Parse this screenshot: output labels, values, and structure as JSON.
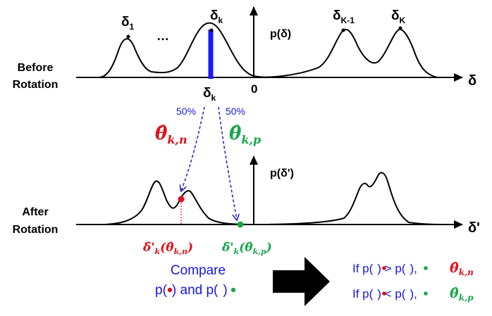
{
  "colors": {
    "curve": "#000000",
    "highlight_bar": "#1a1aff",
    "arrow_blue": "#1a1acc",
    "text_blue": "#1515e6",
    "red": "#e0111a",
    "green": "#16a84a"
  },
  "top": {
    "label_line1": "Before",
    "label_line2": "Rotation",
    "peak_delta1": "δ",
    "peak_delta1_sub": "1",
    "ellipsis": "…",
    "peak_deltak": "δ",
    "peak_deltak_sub": "k",
    "peak_deltaK1": "δ",
    "peak_deltaK1_sub": "K-1",
    "peak_deltaK": "δ",
    "peak_deltaK_sub": "K",
    "yaxis_label": "p(δ)",
    "xaxis_label": "δ",
    "zero_label": "0",
    "below_label": "δ",
    "below_label_sub": "k"
  },
  "arrows": {
    "left_pct": "50%",
    "right_pct": "50%",
    "theta_n_hat": "θ̂",
    "theta_n_sub": "k,n",
    "theta_p_hat": "θ̂",
    "theta_p_sub": "k,p"
  },
  "bottom": {
    "label_line1": "After",
    "label_line2": "Rotation",
    "yaxis_label": "p(δ')",
    "xaxis_label": "δ'",
    "red_label_main": "δ̂'",
    "red_label_k": "k",
    "red_label_open": "(",
    "red_label_theta": "θ̂",
    "red_label_theta_sub": "k,n",
    "red_label_close": ")",
    "green_label_main": "δ̂'",
    "green_label_k": "k",
    "green_label_open": "(",
    "green_label_theta": "θ̂",
    "green_label_theta_sub": "k,p",
    "green_label_close": ")"
  },
  "compare": {
    "line1": "Compare",
    "line2_pre": "p(",
    "line2_mid": ") and p(",
    "line2_post": ")"
  },
  "rules": {
    "r1_a": "If p(",
    "r1_b": ") > p(",
    "r1_c": "), ",
    "r1_theta": "θ̂",
    "r1_sub": "k,n",
    "r2_a": "If p(",
    "r2_b": ") < p(",
    "r2_c": "), ",
    "r2_theta": "θ̂",
    "r2_sub": "k,p"
  }
}
